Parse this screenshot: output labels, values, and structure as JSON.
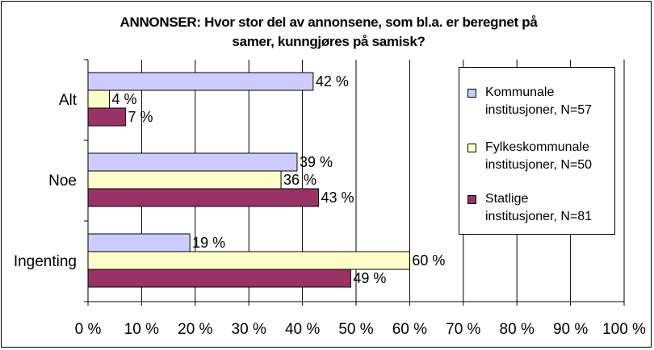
{
  "chart_data": {
    "type": "bar",
    "orientation": "horizontal",
    "title_lines": [
      "ANNONSER: Hvor stor del av annonsene, som bl.a. er beregnet på",
      "samer, kunngjøres på samisk?"
    ],
    "categories": [
      "Alt",
      "Noe",
      "Ingenting"
    ],
    "series": [
      {
        "name": "Kommunale institusjoner, N=57",
        "name_lines": [
          "Kommunale",
          "institusjoner, N=57"
        ],
        "color": "#ccccff",
        "values": [
          42,
          39,
          19
        ],
        "labels": [
          "42 %",
          "39 %",
          "19 %"
        ]
      },
      {
        "name": "Fylkeskommunale institusjoner, N=50",
        "name_lines": [
          "Fylkeskommunale",
          "institusjoner, N=50"
        ],
        "color": "#ffffcc",
        "values": [
          4,
          36,
          60
        ],
        "labels": [
          "4 %",
          "36 %",
          "60 %"
        ]
      },
      {
        "name": "Statlige institusjoner, N=81",
        "name_lines": [
          "Statlige",
          "institusjoner, N=81"
        ],
        "color": "#993366",
        "values": [
          7,
          43,
          49
        ],
        "labels": [
          "7 %",
          "43 %",
          "49 %"
        ]
      }
    ],
    "xlim": [
      0,
      100
    ],
    "x_ticks": [
      "0 %",
      "10 %",
      "20 %",
      "30 %",
      "40 %",
      "50 %",
      "60 %",
      "70 %",
      "80 %",
      "90 %",
      "100 %"
    ],
    "grid": true,
    "legend_position": "right"
  }
}
